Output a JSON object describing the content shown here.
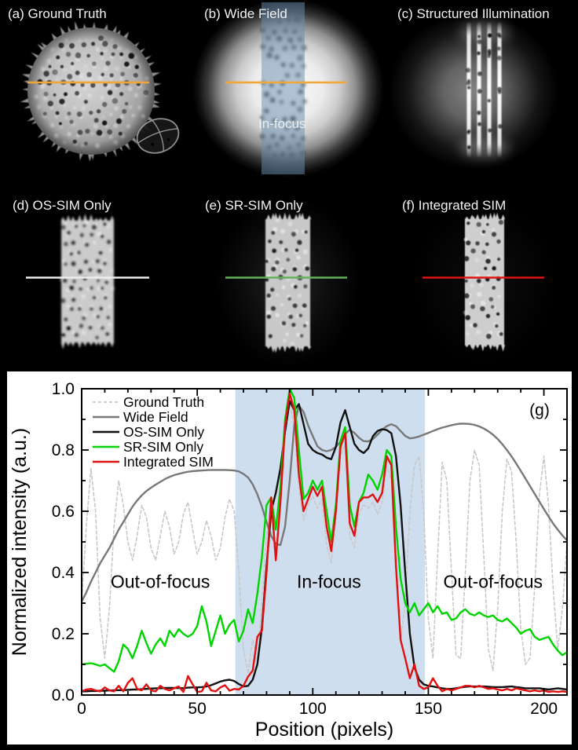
{
  "panels": {
    "a": {
      "label": "(a) Ground Truth"
    },
    "b": {
      "label": "(b) Wide Field",
      "overlay_label": "In-focus"
    },
    "c": {
      "label": "(c) Structured Illumination"
    },
    "d": {
      "label": "(d) OS-SIM Only"
    },
    "e": {
      "label": "(e) SR-SIM Only"
    },
    "f": {
      "label": "(f) Integrated SIM"
    }
  },
  "colors": {
    "profile_line_ab": "#f2a635",
    "profile_line_d": "#ebebeb",
    "profile_line_e": "#63b15a",
    "profile_line_f": "#e01212",
    "panel_infocus_band": "rgba(104,142,178,0.5)",
    "chart_infocus_band": "#cfdeee"
  },
  "chart_data": {
    "type": "line",
    "xlabel": "Position (pixels)",
    "ylabel": "Normalized intensity (a.u.)",
    "panel_tag": "(g)",
    "xlim": [
      0,
      210
    ],
    "ylim": [
      0.0,
      1.0
    ],
    "x_ticks": [
      0,
      50,
      100,
      150,
      200
    ],
    "x_tick_labels": [
      "0",
      "50",
      "100",
      "150",
      "200"
    ],
    "x_minor_step": 10,
    "y_ticks": [
      0.0,
      0.2,
      0.4,
      0.6,
      0.8,
      1.0
    ],
    "y_tick_labels": [
      "0.0",
      "0.2",
      "0.4",
      "0.6",
      "0.8",
      "1.0"
    ],
    "y_minor_step": 0.1,
    "legend_position": "top-left",
    "grid": false,
    "infocus_band": {
      "x0": 66.5,
      "x1": 148.5,
      "color": "#cfdeee"
    },
    "annotations": [
      {
        "text": "Out-of-focus",
        "x": 34,
        "y": 0.37
      },
      {
        "text": "In-focus",
        "x": 107,
        "y": 0.37
      },
      {
        "text": "Out-of-focus",
        "x": 178,
        "y": 0.37
      }
    ],
    "x": [
      0,
      2,
      4,
      6,
      8,
      10,
      12,
      14,
      16,
      18,
      20,
      22,
      24,
      26,
      28,
      30,
      32,
      34,
      36,
      38,
      40,
      42,
      44,
      46,
      48,
      50,
      52,
      54,
      56,
      58,
      60,
      62,
      64,
      66,
      68,
      70,
      72,
      74,
      76,
      78,
      80,
      82,
      84,
      86,
      88,
      90,
      92,
      94,
      96,
      98,
      100,
      102,
      104,
      106,
      108,
      110,
      112,
      114,
      116,
      118,
      120,
      122,
      124,
      126,
      128,
      130,
      132,
      134,
      136,
      138,
      140,
      142,
      144,
      146,
      148,
      150,
      152,
      154,
      156,
      158,
      160,
      162,
      164,
      166,
      168,
      170,
      172,
      174,
      176,
      178,
      180,
      182,
      184,
      186,
      188,
      190,
      192,
      194,
      196,
      198,
      200,
      202,
      204,
      206,
      208,
      210
    ],
    "series": [
      {
        "name": "Ground Truth",
        "color": "#c8c8c8",
        "dash": "4 3",
        "width": 1.6,
        "values": [
          0.3,
          0.55,
          0.74,
          0.6,
          0.25,
          0.12,
          0.28,
          0.55,
          0.7,
          0.62,
          0.5,
          0.44,
          0.52,
          0.62,
          0.58,
          0.48,
          0.44,
          0.52,
          0.6,
          0.55,
          0.46,
          0.5,
          0.59,
          0.63,
          0.54,
          0.46,
          0.5,
          0.57,
          0.52,
          0.44,
          0.48,
          0.58,
          0.64,
          0.6,
          0.4,
          0.15,
          0.07,
          0.18,
          0.12,
          0.3,
          0.52,
          0.6,
          0.44,
          0.62,
          0.88,
          0.95,
          0.88,
          0.68,
          0.57,
          0.62,
          0.65,
          0.61,
          0.64,
          0.49,
          0.43,
          0.57,
          0.78,
          0.82,
          0.52,
          0.48,
          0.59,
          0.62,
          0.61,
          0.63,
          0.59,
          0.63,
          0.75,
          0.7,
          0.42,
          0.18,
          0.3,
          0.6,
          0.75,
          0.78,
          0.6,
          0.25,
          0.12,
          0.45,
          0.76,
          0.7,
          0.4,
          0.13,
          0.12,
          0.4,
          0.7,
          0.8,
          0.75,
          0.45,
          0.15,
          0.08,
          0.28,
          0.6,
          0.77,
          0.73,
          0.5,
          0.22,
          0.1,
          0.12,
          0.35,
          0.65,
          0.78,
          0.62,
          0.35,
          0.15,
          0.28,
          0.5
        ]
      },
      {
        "name": "Wide Field",
        "color": "#787878",
        "dash": "",
        "width": 2.4,
        "values": [
          0.305,
          0.335,
          0.37,
          0.4,
          0.43,
          0.455,
          0.48,
          0.51,
          0.54,
          0.565,
          0.59,
          0.615,
          0.635,
          0.652,
          0.666,
          0.677,
          0.687,
          0.696,
          0.705,
          0.712,
          0.718,
          0.722,
          0.726,
          0.729,
          0.731,
          0.732,
          0.733,
          0.734,
          0.735,
          0.735,
          0.735,
          0.735,
          0.734,
          0.733,
          0.73,
          0.722,
          0.71,
          0.688,
          0.655,
          0.615,
          0.565,
          0.52,
          0.493,
          0.49,
          0.55,
          0.7,
          0.88,
          0.945,
          0.925,
          0.88,
          0.845,
          0.812,
          0.8,
          0.796,
          0.8,
          0.81,
          0.828,
          0.852,
          0.866,
          0.856,
          0.84,
          0.829,
          0.828,
          0.836,
          0.85,
          0.866,
          0.878,
          0.884,
          0.878,
          0.862,
          0.846,
          0.838,
          0.84,
          0.844,
          0.85,
          0.856,
          0.862,
          0.868,
          0.873,
          0.877,
          0.881,
          0.884,
          0.886,
          0.886,
          0.885,
          0.882,
          0.877,
          0.87,
          0.861,
          0.85,
          0.836,
          0.819,
          0.8,
          0.779,
          0.756,
          0.732,
          0.707,
          0.682,
          0.657,
          0.632,
          0.607,
          0.583,
          0.56,
          0.54,
          0.521,
          0.505
        ]
      },
      {
        "name": "OS-SIM Only",
        "color": "#111111",
        "dash": "",
        "width": 2.4,
        "values": [
          0.012,
          0.012,
          0.013,
          0.013,
          0.014,
          0.014,
          0.015,
          0.015,
          0.016,
          0.016,
          0.017,
          0.018,
          0.018,
          0.019,
          0.02,
          0.021,
          0.022,
          0.022,
          0.023,
          0.023,
          0.023,
          0.023,
          0.022,
          0.024,
          0.025,
          0.025,
          0.026,
          0.028,
          0.032,
          0.038,
          0.044,
          0.048,
          0.05,
          0.046,
          0.036,
          0.028,
          0.03,
          0.05,
          0.1,
          0.22,
          0.42,
          0.6,
          0.66,
          0.74,
          0.86,
          0.96,
          0.93,
          0.95,
          0.885,
          0.82,
          0.8,
          0.79,
          0.785,
          0.775,
          0.77,
          0.81,
          0.89,
          0.93,
          0.875,
          0.82,
          0.8,
          0.79,
          0.805,
          0.845,
          0.862,
          0.868,
          0.865,
          0.855,
          0.78,
          0.62,
          0.4,
          0.2,
          0.09,
          0.05,
          0.035,
          0.03,
          0.028,
          0.025,
          0.022,
          0.02,
          0.02,
          0.022,
          0.025,
          0.027,
          0.028,
          0.028,
          0.028,
          0.028,
          0.027,
          0.026,
          0.026,
          0.026,
          0.027,
          0.028,
          0.026,
          0.024,
          0.022,
          0.022,
          0.022,
          0.022,
          0.02,
          0.018,
          0.02,
          0.022,
          0.02,
          0.018
        ]
      },
      {
        "name": "SR-SIM Only",
        "color": "#00d400",
        "dash": "",
        "width": 2.4,
        "values": [
          0.1,
          0.102,
          0.104,
          0.1,
          0.095,
          0.1,
          0.088,
          0.076,
          0.11,
          0.165,
          0.15,
          0.12,
          0.16,
          0.21,
          0.17,
          0.135,
          0.165,
          0.185,
          0.16,
          0.21,
          0.19,
          0.215,
          0.2,
          0.19,
          0.2,
          0.225,
          0.29,
          0.24,
          0.16,
          0.21,
          0.26,
          0.2,
          0.23,
          0.245,
          0.175,
          0.21,
          0.28,
          0.235,
          0.33,
          0.45,
          0.62,
          0.645,
          0.54,
          0.68,
          0.9,
          1.0,
          0.97,
          0.8,
          0.64,
          0.66,
          0.7,
          0.67,
          0.7,
          0.6,
          0.5,
          0.62,
          0.83,
          0.875,
          0.62,
          0.55,
          0.63,
          0.66,
          0.72,
          0.7,
          0.67,
          0.72,
          0.8,
          0.78,
          0.55,
          0.38,
          0.3,
          0.27,
          0.3,
          0.26,
          0.28,
          0.3,
          0.27,
          0.29,
          0.265,
          0.27,
          0.245,
          0.25,
          0.27,
          0.28,
          0.265,
          0.26,
          0.27,
          0.26,
          0.255,
          0.26,
          0.245,
          0.24,
          0.25,
          0.235,
          0.22,
          0.2,
          0.21,
          0.215,
          0.19,
          0.18,
          0.185,
          0.19,
          0.165,
          0.145,
          0.13,
          0.14
        ]
      },
      {
        "name": "Integrated SIM",
        "color": "#e01111",
        "dash": "",
        "width": 2.4,
        "values": [
          0.012,
          0.018,
          0.02,
          0.015,
          0.012,
          0.025,
          0.015,
          0.012,
          0.03,
          0.012,
          0.04,
          0.055,
          0.02,
          0.015,
          0.035,
          0.015,
          0.012,
          0.03,
          0.02,
          0.015,
          0.022,
          0.028,
          0.01,
          0.062,
          0.035,
          0.01,
          0.012,
          0.04,
          0.015,
          0.012,
          0.025,
          0.032,
          0.014,
          0.02,
          0.018,
          0.03,
          0.06,
          0.08,
          0.19,
          0.21,
          0.4,
          0.645,
          0.44,
          0.63,
          0.88,
          0.985,
          0.93,
          0.72,
          0.6,
          0.64,
          0.68,
          0.65,
          0.68,
          0.55,
          0.47,
          0.6,
          0.81,
          0.855,
          0.56,
          0.52,
          0.63,
          0.645,
          0.645,
          0.655,
          0.63,
          0.66,
          0.78,
          0.75,
          0.42,
          0.18,
          0.12,
          0.055,
          0.1,
          0.03,
          0.02,
          0.025,
          0.055,
          0.03,
          0.012,
          0.02,
          0.015,
          0.02,
          0.025,
          0.03,
          0.03,
          0.025,
          0.03,
          0.025,
          0.02,
          0.022,
          0.018,
          0.015,
          0.02,
          0.015,
          0.022,
          0.018,
          0.015,
          0.012,
          0.015,
          0.012,
          0.015,
          0.01,
          0.012,
          0.01,
          0.012,
          0.01
        ]
      }
    ]
  }
}
